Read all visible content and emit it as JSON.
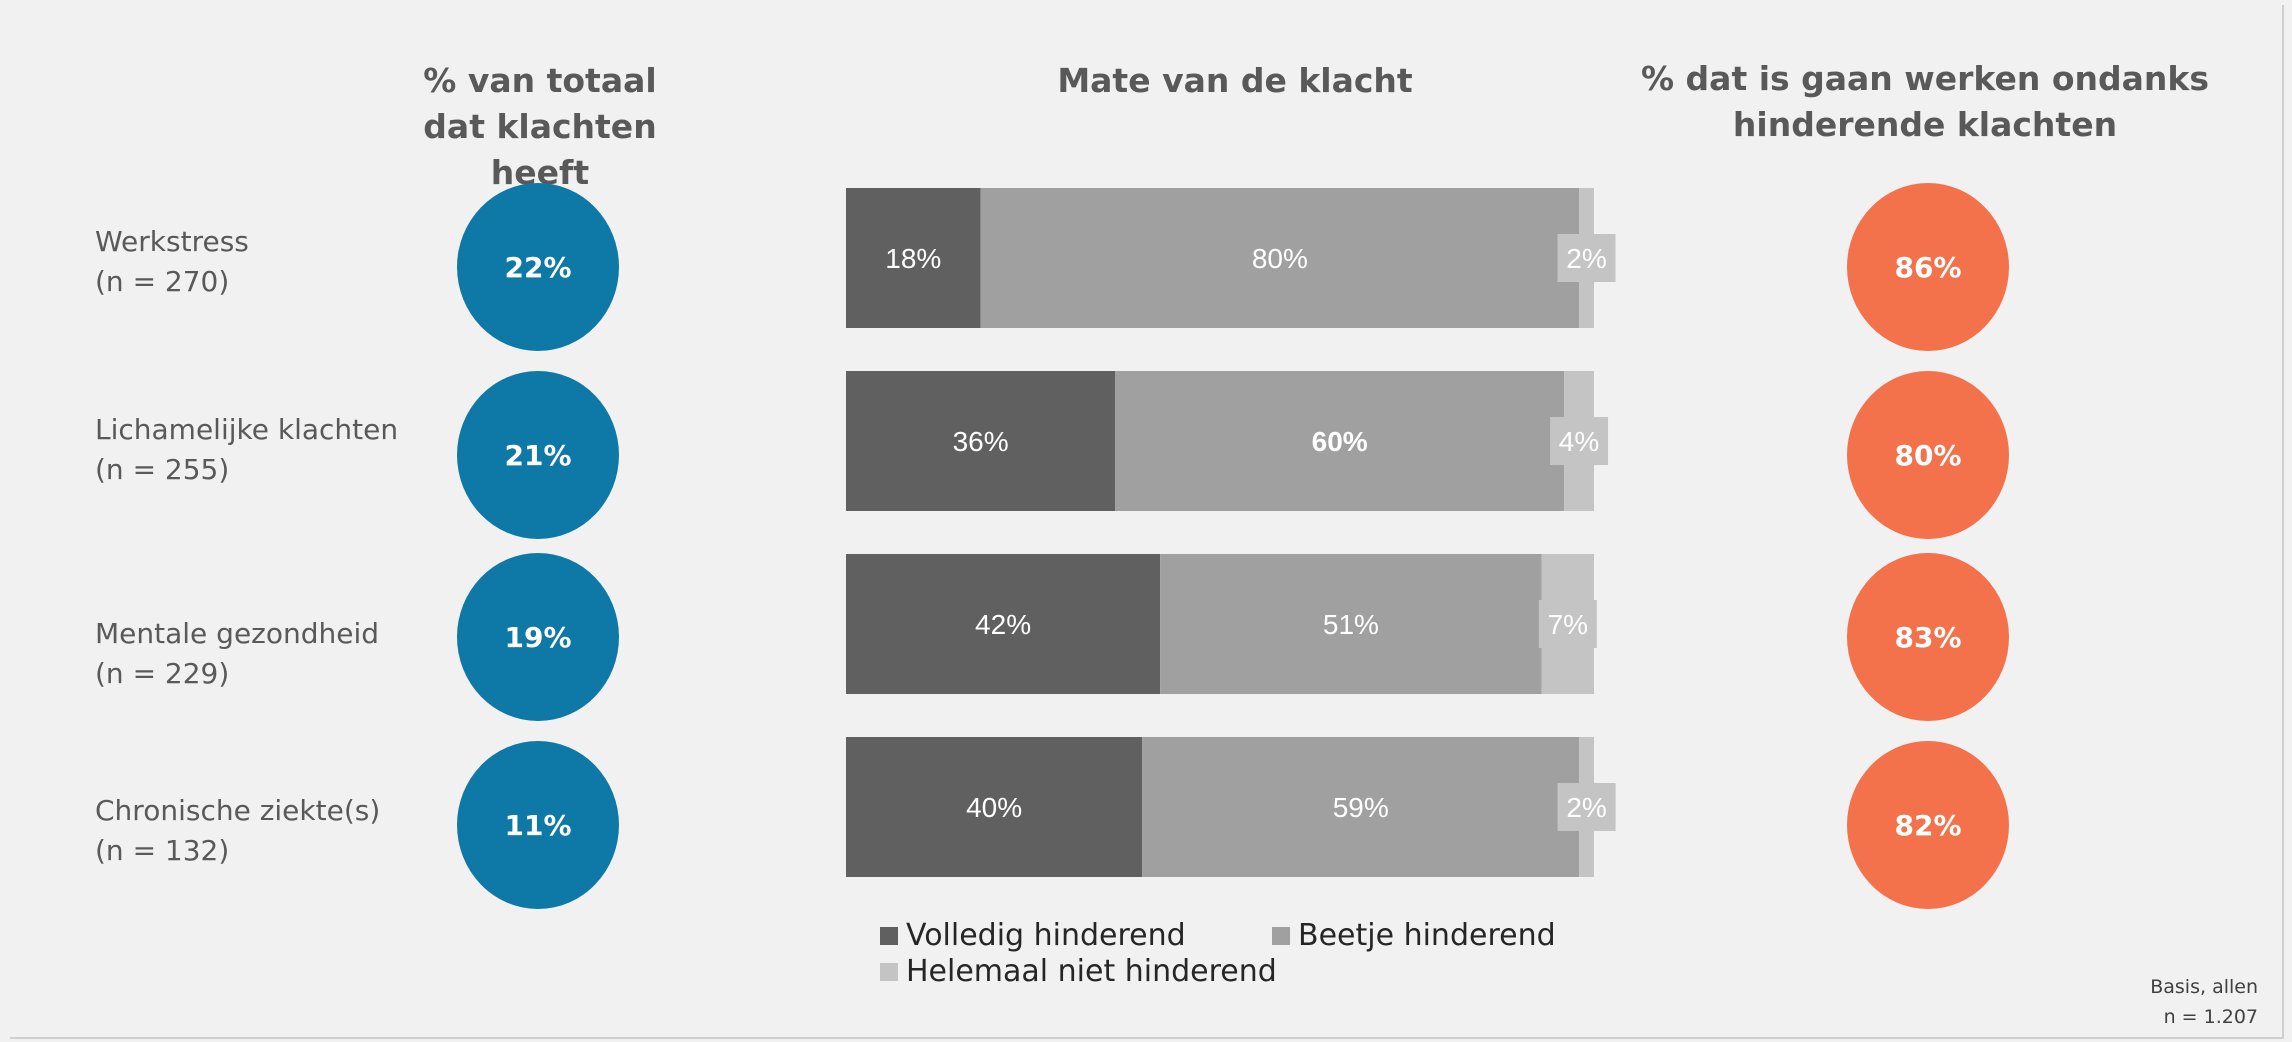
{
  "colors": {
    "background": "#f1f1f1",
    "blue_circle": "#0e78a6",
    "orange_circle": "#f4724b",
    "volledig": "#606060",
    "beetje": "#a0a0a0",
    "helemaal_niet": "#c4c4c4"
  },
  "titles": {
    "left": "% van totaal dat klachten heeft",
    "middle": "Mate van de klacht",
    "right": "% dat is gaan werken ondanks hinderende klachten"
  },
  "rows": [
    {
      "label": "Werkstress",
      "n": "(n = 270)",
      "total_pct": "22%",
      "werken_pct": "86%"
    },
    {
      "label": "Lichamelijke klachten",
      "n": "(n = 255)",
      "total_pct": "21%",
      "werken_pct": "80%"
    },
    {
      "label": "Mentale gezondheid",
      "n": "(n = 229)",
      "total_pct": "19%",
      "werken_pct": "83%"
    },
    {
      "label": "Chronische ziekte(s)",
      "n": "(n = 132)",
      "total_pct": "11%",
      "werken_pct": "82%"
    }
  ],
  "footnote": {
    "line1": "Basis, allen",
    "line2": "n = 1.207"
  },
  "chart_data": {
    "type": "bar",
    "orientation": "horizontal",
    "stacked": true,
    "title": "Mate van de klacht",
    "categories": [
      "Werkstress",
      "Lichamelijke klachten",
      "Mentale gezondheid",
      "Chronische ziekte(s)"
    ],
    "series": [
      {
        "name": "Volledig hinderend",
        "values": [
          18,
          36,
          42,
          40
        ],
        "labels": [
          "18%",
          "36%",
          "42%",
          "40%"
        ]
      },
      {
        "name": "Beetje hinderend",
        "values": [
          80,
          60,
          51,
          59
        ],
        "labels": [
          "80%",
          "60%",
          "51%",
          "59%"
        ]
      },
      {
        "name": "Helemaal niet hinderend",
        "values": [
          2,
          4,
          7,
          2
        ],
        "labels": [
          "2%",
          "4%",
          "7%",
          "2%"
        ]
      }
    ],
    "legend": "bottom"
  }
}
